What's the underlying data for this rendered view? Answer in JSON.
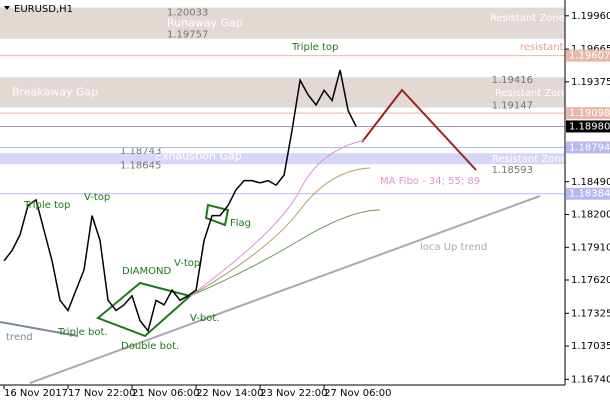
{
  "chart_data": {
    "type": "line",
    "title": "EURUSD,H1",
    "x": [
      0,
      1,
      2,
      3,
      4,
      5,
      6,
      7,
      8,
      9,
      10,
      11,
      12,
      13,
      14,
      15,
      16,
      17,
      18,
      19,
      20,
      21,
      22,
      23,
      24,
      25,
      26,
      27,
      28,
      29,
      30,
      31,
      32,
      33,
      34,
      35,
      36,
      37,
      38,
      39,
      40,
      41,
      42,
      43,
      44
    ],
    "series": [
      {
        "name": "EURUSD",
        "color": "#000000",
        "values": [
          1.1779,
          1.1788,
          1.1802,
          1.1828,
          1.1833,
          1.1806,
          1.1779,
          1.1744,
          1.1735,
          1.1753,
          1.1771,
          1.1819,
          1.1797,
          1.1744,
          1.1735,
          1.174,
          1.1748,
          1.1726,
          1.1717,
          1.1744,
          1.174,
          1.1753,
          1.1744,
          1.1748,
          1.1753,
          1.1797,
          1.1819,
          1.1819,
          1.1828,
          1.1842,
          1.185,
          1.185,
          1.1848,
          1.185,
          1.1846,
          1.1855,
          1.1895,
          1.1939,
          1.1926,
          1.1917,
          1.193,
          1.1921,
          1.1948,
          1.1912,
          1.1898
        ]
      }
    ],
    "xlim": [
      -0.5,
      70.1
    ],
    "xticks": [
      {
        "value": 0,
        "label": "16 Nov 2017"
      },
      {
        "value": 8,
        "label": "17 Nov 22:00"
      },
      {
        "value": 16,
        "label": "21 Nov 06:00"
      },
      {
        "value": 24,
        "label": "22 Nov 14:00"
      },
      {
        "value": 32,
        "label": "23 Nov 22:00"
      },
      {
        "value": 40,
        "label": "27 Nov 06:00"
      }
    ],
    "ylim": [
      1.1669,
      1.201
    ],
    "yticks": [
      {
        "value": 1.1996,
        "label": "1.19960"
      },
      1.19665,
      1.19375,
      {
        "value": 1.1849,
        "label": "1.18490"
      },
      {
        "value": 1.182,
        "label": "1.18200"
      },
      {
        "value": 1.1791,
        "label": "1.17910"
      },
      {
        "value": 1.1762,
        "label": "1.17620"
      },
      1.17325,
      1.17035,
      {
        "value": 1.1674,
        "label": "1.16740"
      }
    ],
    "levels": [
      {
        "value": 1.19607,
        "color": "#e8b8a8"
      },
      {
        "value": 1.19098,
        "color": "#e8b8a8"
      },
      {
        "value": 1.1898,
        "label": "1.18980",
        "color": "#000000"
      },
      {
        "value": 1.18794,
        "color": "#b8b8f0"
      },
      {
        "value": 1.18384,
        "color": "#b8b8f0"
      }
    ],
    "zones": [
      {
        "name": "Runaway Gap",
        "low": 1.19757,
        "high": 1.20033,
        "color": "#e2d8d4"
      },
      {
        "name": "Breakaway Gap",
        "low": 1.19147,
        "high": 1.19416,
        "color": "#e2d8d4"
      },
      {
        "name": "Exhaustion  Gap",
        "low": 1.18645,
        "high": 1.18743,
        "color": "#d6d6f6"
      }
    ],
    "zone_note": 1.18593,
    "annotations": [
      "Resistant Zone",
      "resistant",
      "Resistant Zone",
      "Resistant Zone",
      "Triple top",
      "Triple top",
      "MA Fibo - 34; 55; 89",
      "Flag",
      "V-top",
      "V-top",
      "DIAMOND",
      "Triple bot.",
      "Double bot.",
      "V-bot.",
      "loca Up trend",
      "trend"
    ]
  }
}
